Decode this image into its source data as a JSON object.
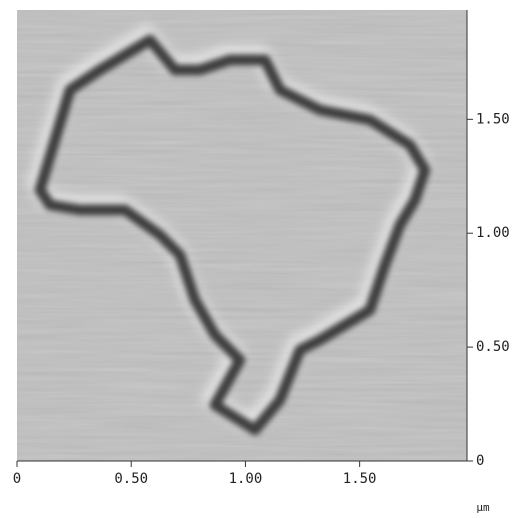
{
  "chart_data": {
    "type": "image",
    "x_unit": "µm",
    "xlim": [
      0,
      1.97
    ],
    "ylim": [
      0,
      1.98
    ],
    "xticks": [
      0,
      {
        "value": 0.5,
        "label": "0.50"
      },
      {
        "value": 1,
        "label": "1.00"
      },
      {
        "value": 1.5,
        "label": "1.50"
      }
    ],
    "yticks": [
      0,
      {
        "value": 0.5,
        "label": "0.50"
      },
      {
        "value": 1,
        "label": "1.00"
      },
      {
        "value": 1.5,
        "label": "1.50"
      }
    ]
  }
}
